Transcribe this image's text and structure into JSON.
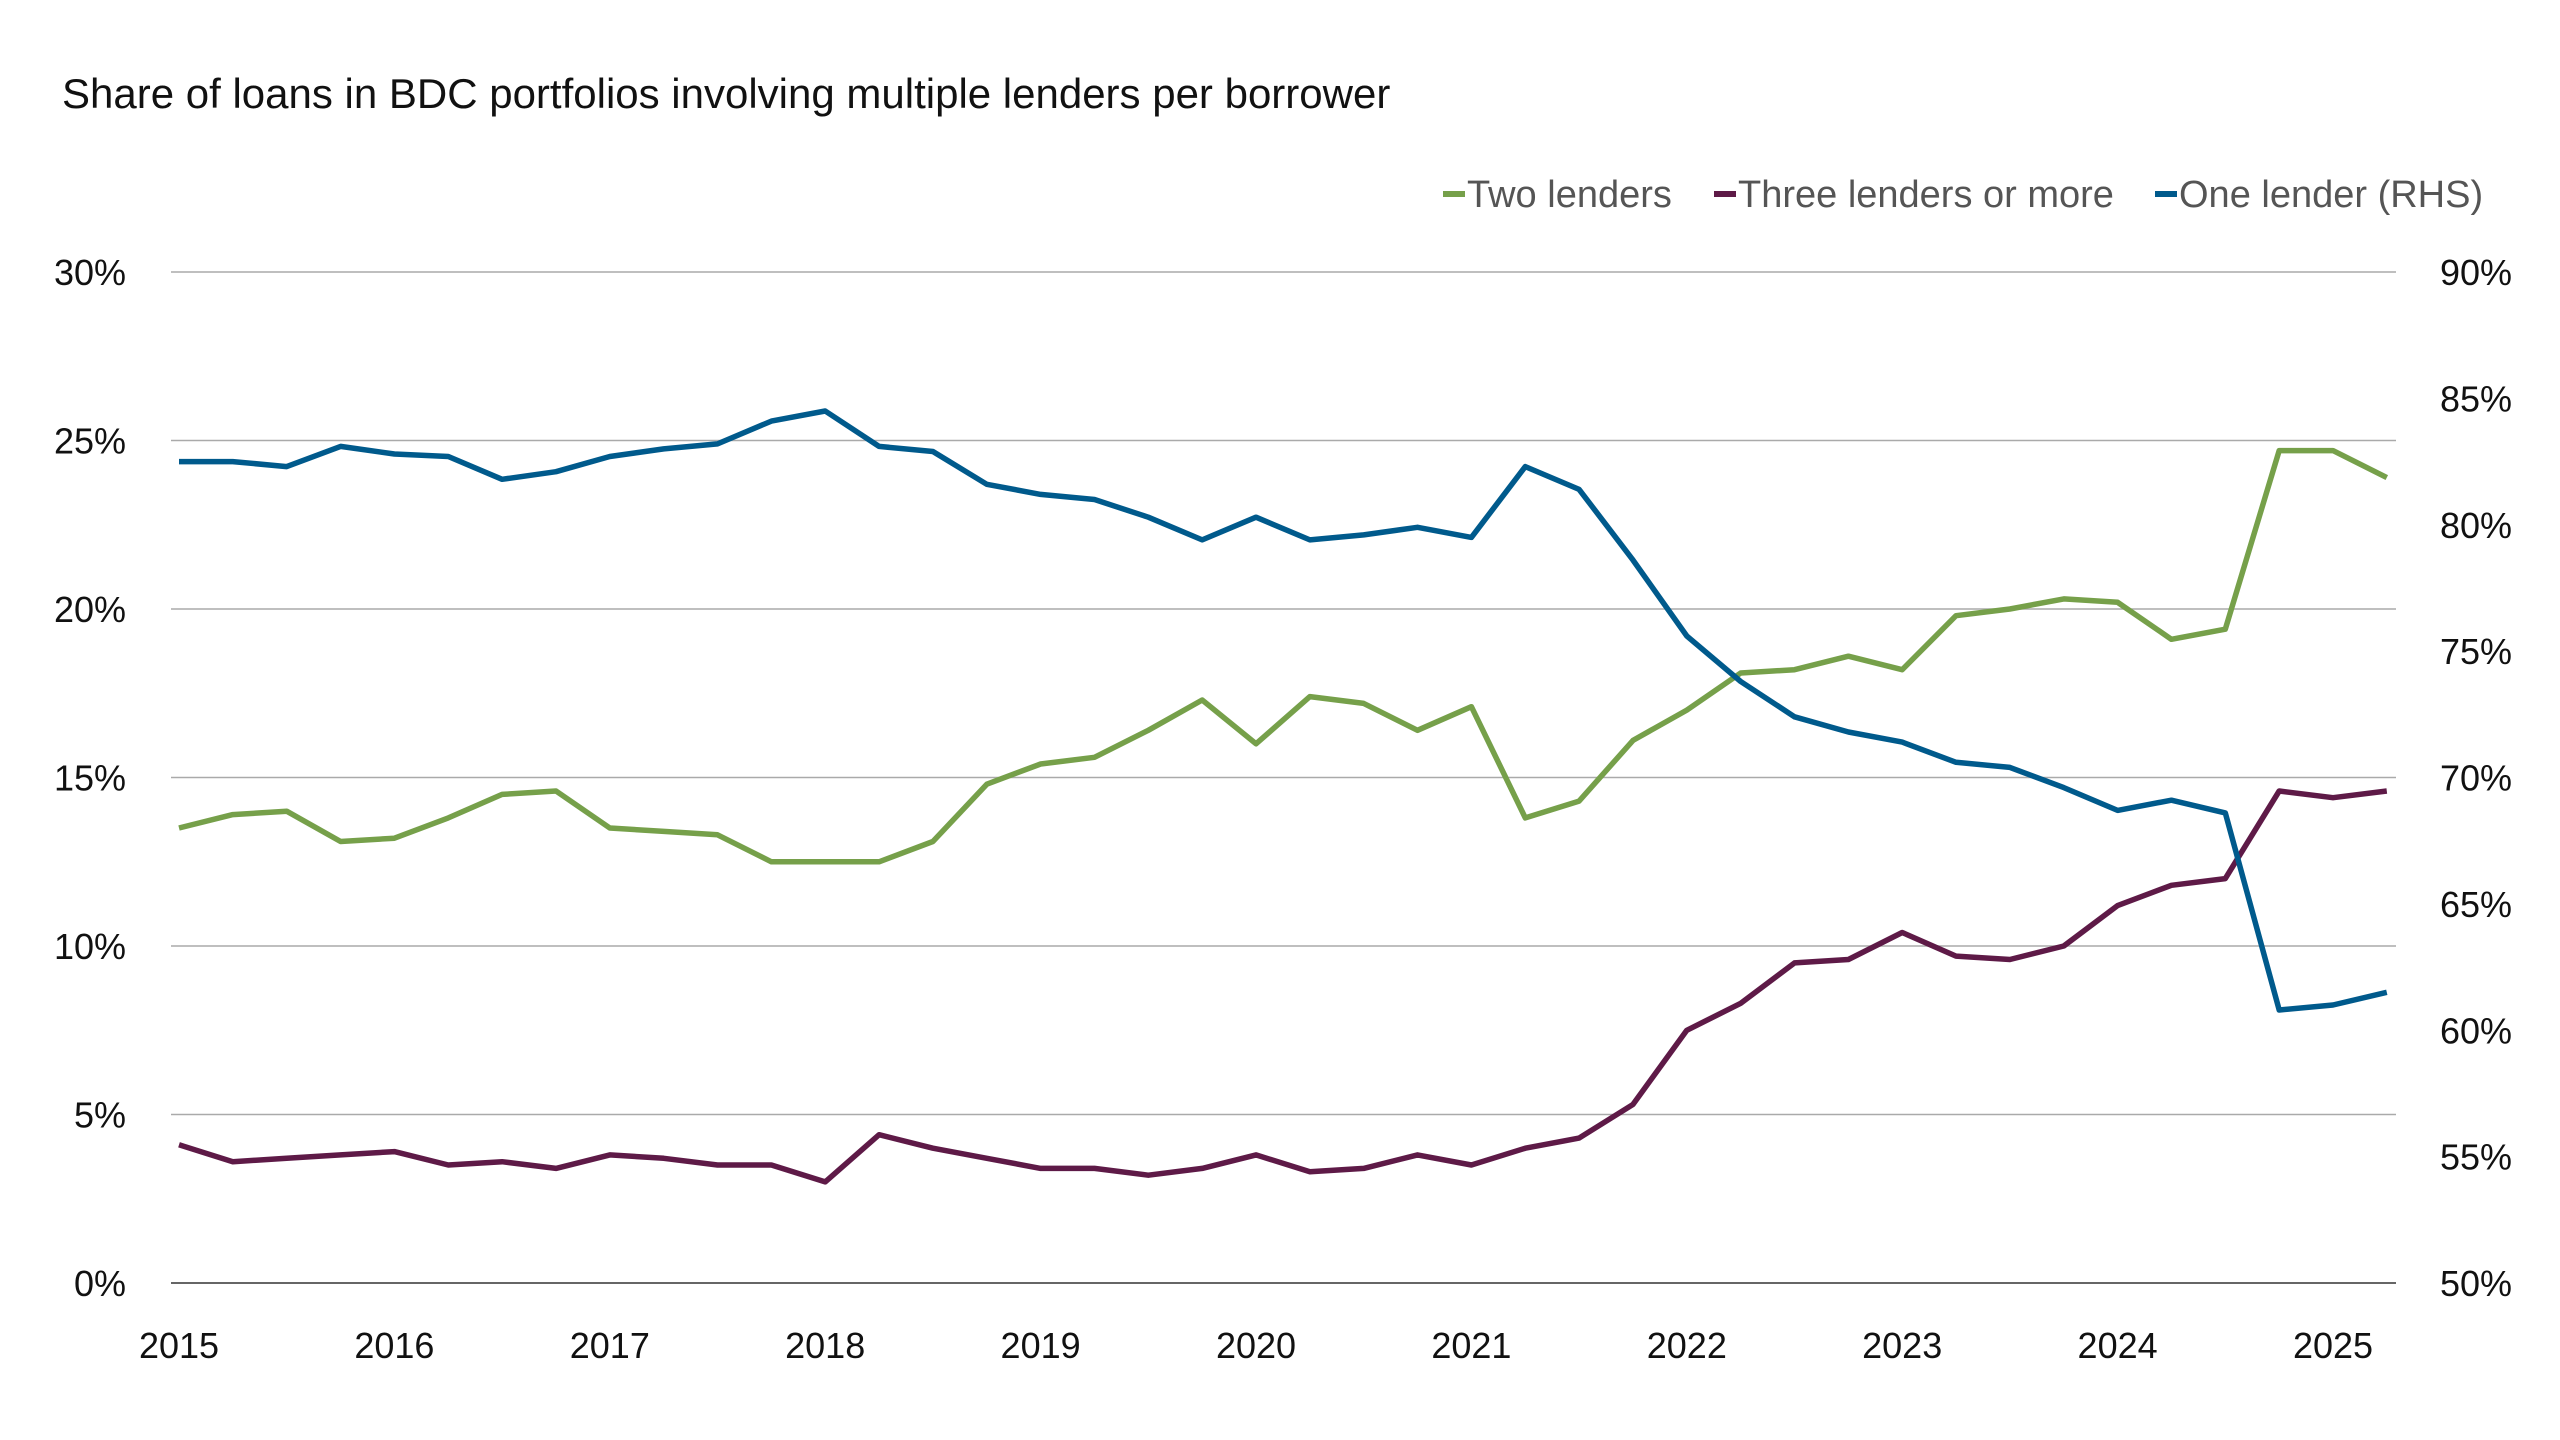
{
  "chart_data": {
    "type": "line",
    "title": "Share of loans in BDC portfolios involving multiple lenders per borrower",
    "legend_position": "top-right",
    "grid": true,
    "x": [
      "2015Q1",
      "2015Q2",
      "2015Q3",
      "2015Q4",
      "2016Q1",
      "2016Q2",
      "2016Q3",
      "2016Q4",
      "2017Q1",
      "2017Q2",
      "2017Q3",
      "2017Q4",
      "2018Q1",
      "2018Q2",
      "2018Q3",
      "2018Q4",
      "2019Q1",
      "2019Q2",
      "2019Q3",
      "2019Q4",
      "2020Q1",
      "2020Q2",
      "2020Q3",
      "2020Q4",
      "2021Q1",
      "2021Q2",
      "2021Q3",
      "2021Q4",
      "2022Q1",
      "2022Q2",
      "2022Q3",
      "2022Q4",
      "2023Q1",
      "2023Q2",
      "2023Q3",
      "2023Q4",
      "2024Q1",
      "2024Q2",
      "2024Q3",
      "2024Q4",
      "2025Q1",
      "2025Q2"
    ],
    "x_tick_labels": [
      "2015",
      "2016",
      "2017",
      "2018",
      "2019",
      "2020",
      "2021",
      "2022",
      "2023",
      "2024",
      "2025"
    ],
    "y_left": {
      "range": [
        0,
        30
      ],
      "ticks": [
        "0%",
        "5%",
        "10%",
        "15%",
        "20%",
        "25%",
        "30%"
      ]
    },
    "y_right": {
      "range": [
        50,
        90
      ],
      "ticks": [
        "50%",
        "55%",
        "60%",
        "65%",
        "70%",
        "75%",
        "80%",
        "85%",
        "90%"
      ]
    },
    "series": [
      {
        "name": "Two lenders",
        "axis": "left",
        "color": "#76a04a",
        "values": [
          13.5,
          13.9,
          14.0,
          13.1,
          13.2,
          13.8,
          14.5,
          14.6,
          13.5,
          13.4,
          13.3,
          12.5,
          12.5,
          12.5,
          13.1,
          14.8,
          15.4,
          15.6,
          16.4,
          17.3,
          16.0,
          17.4,
          17.2,
          16.4,
          17.1,
          13.8,
          14.3,
          16.1,
          17.0,
          18.1,
          18.2,
          18.6,
          18.2,
          19.8,
          20.0,
          20.3,
          20.2,
          19.1,
          19.4,
          24.7,
          24.7,
          23.9
        ]
      },
      {
        "name": "Three lenders or more",
        "axis": "left",
        "color": "#5e1a47",
        "values": [
          4.1,
          3.6,
          3.7,
          3.8,
          3.9,
          3.5,
          3.6,
          3.4,
          3.8,
          3.7,
          3.5,
          3.5,
          3.0,
          4.4,
          4.0,
          3.7,
          3.4,
          3.4,
          3.2,
          3.4,
          3.8,
          3.3,
          3.4,
          3.8,
          3.5,
          4.0,
          4.3,
          5.3,
          7.5,
          8.3,
          9.5,
          9.6,
          10.4,
          9.7,
          9.6,
          10.0,
          11.2,
          11.8,
          12.0,
          14.6,
          14.4,
          14.6
        ]
      },
      {
        "name": "One lender (RHS)",
        "axis": "right",
        "color": "#005a8c",
        "values": [
          82.5,
          82.5,
          82.3,
          83.1,
          82.8,
          82.7,
          81.8,
          82.1,
          82.7,
          83.0,
          83.2,
          84.1,
          84.5,
          83.1,
          82.9,
          81.6,
          81.2,
          81.0,
          80.3,
          79.4,
          80.3,
          79.4,
          79.6,
          79.9,
          79.5,
          82.3,
          81.4,
          78.6,
          75.6,
          73.8,
          72.4,
          71.8,
          71.4,
          70.6,
          70.4,
          69.6,
          68.7,
          69.1,
          68.6,
          60.8,
          61.0,
          61.5
        ]
      }
    ]
  }
}
